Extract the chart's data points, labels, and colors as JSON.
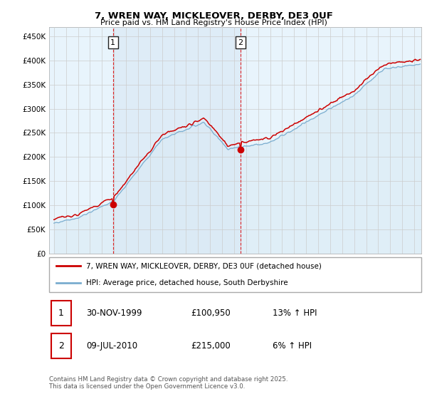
{
  "title_line1": "7, WREN WAY, MICKLEOVER, DERBY, DE3 0UF",
  "title_line2": "Price paid vs. HM Land Registry's House Price Index (HPI)",
  "ylabel_ticks": [
    "£0",
    "£50K",
    "£100K",
    "£150K",
    "£200K",
    "£250K",
    "£300K",
    "£350K",
    "£400K",
    "£450K"
  ],
  "ytick_values": [
    0,
    50000,
    100000,
    150000,
    200000,
    250000,
    300000,
    350000,
    400000,
    450000
  ],
  "ylim": [
    0,
    470000
  ],
  "xlim_start": 1994.6,
  "xlim_end": 2025.6,
  "xticks": [
    1995,
    1996,
    1997,
    1998,
    1999,
    2000,
    2001,
    2002,
    2003,
    2004,
    2005,
    2006,
    2007,
    2008,
    2009,
    2010,
    2011,
    2012,
    2013,
    2014,
    2015,
    2016,
    2017,
    2018,
    2019,
    2020,
    2021,
    2022,
    2023,
    2024,
    2025
  ],
  "red_line_color": "#cc0000",
  "blue_line_color": "#7aadcf",
  "blue_fill_color": "#daeaf5",
  "shade_fill_color": "#daeaf5",
  "grid_color": "#cccccc",
  "plot_bg": "#e8f4fc",
  "sale1_x": 1999.92,
  "sale1_y": 100950,
  "sale1_label": "1",
  "sale2_x": 2010.52,
  "sale2_y": 215000,
  "sale2_label": "2",
  "legend_red_label": "7, WREN WAY, MICKLEOVER, DERBY, DE3 0UF (detached house)",
  "legend_blue_label": "HPI: Average price, detached house, South Derbyshire",
  "table_row1": [
    "1",
    "30-NOV-1999",
    "£100,950",
    "13% ↑ HPI"
  ],
  "table_row2": [
    "2",
    "09-JUL-2010",
    "£215,000",
    "6% ↑ HPI"
  ],
  "footnote": "Contains HM Land Registry data © Crown copyright and database right 2025.\nThis data is licensed under the Open Government Licence v3.0."
}
